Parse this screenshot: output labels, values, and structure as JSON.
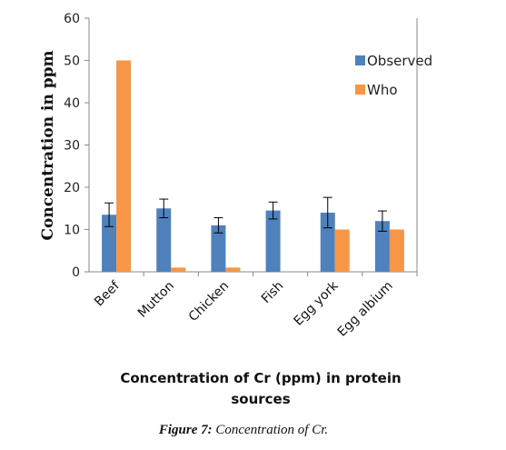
{
  "chart_data": {
    "type": "bar",
    "categories": [
      "Beef",
      "Mutton",
      "Chicken",
      "Fish",
      "Egg york",
      "Egg albium"
    ],
    "series": [
      {
        "name": "Observed",
        "color": "#4F81BD",
        "values": [
          13.5,
          15,
          11,
          14.5,
          14,
          12
        ],
        "errors": [
          2.8,
          2.2,
          1.8,
          2.0,
          3.6,
          2.4
        ]
      },
      {
        "name": "Who",
        "color": "#F79646",
        "values": [
          50,
          1,
          1,
          null,
          10,
          10
        ]
      }
    ],
    "title": "",
    "xlabel_lines": [
      "Concentration of Cr (ppm) in protein",
      "sources"
    ],
    "ylabel": "Concentration in ppm",
    "ylim": [
      0,
      60
    ],
    "yticks": [
      0,
      10,
      20,
      30,
      40,
      50,
      60
    ],
    "grid": false,
    "legend_position": "right"
  },
  "caption": {
    "prefix": "Figure 7:",
    "text": " Concentration of Cr."
  }
}
